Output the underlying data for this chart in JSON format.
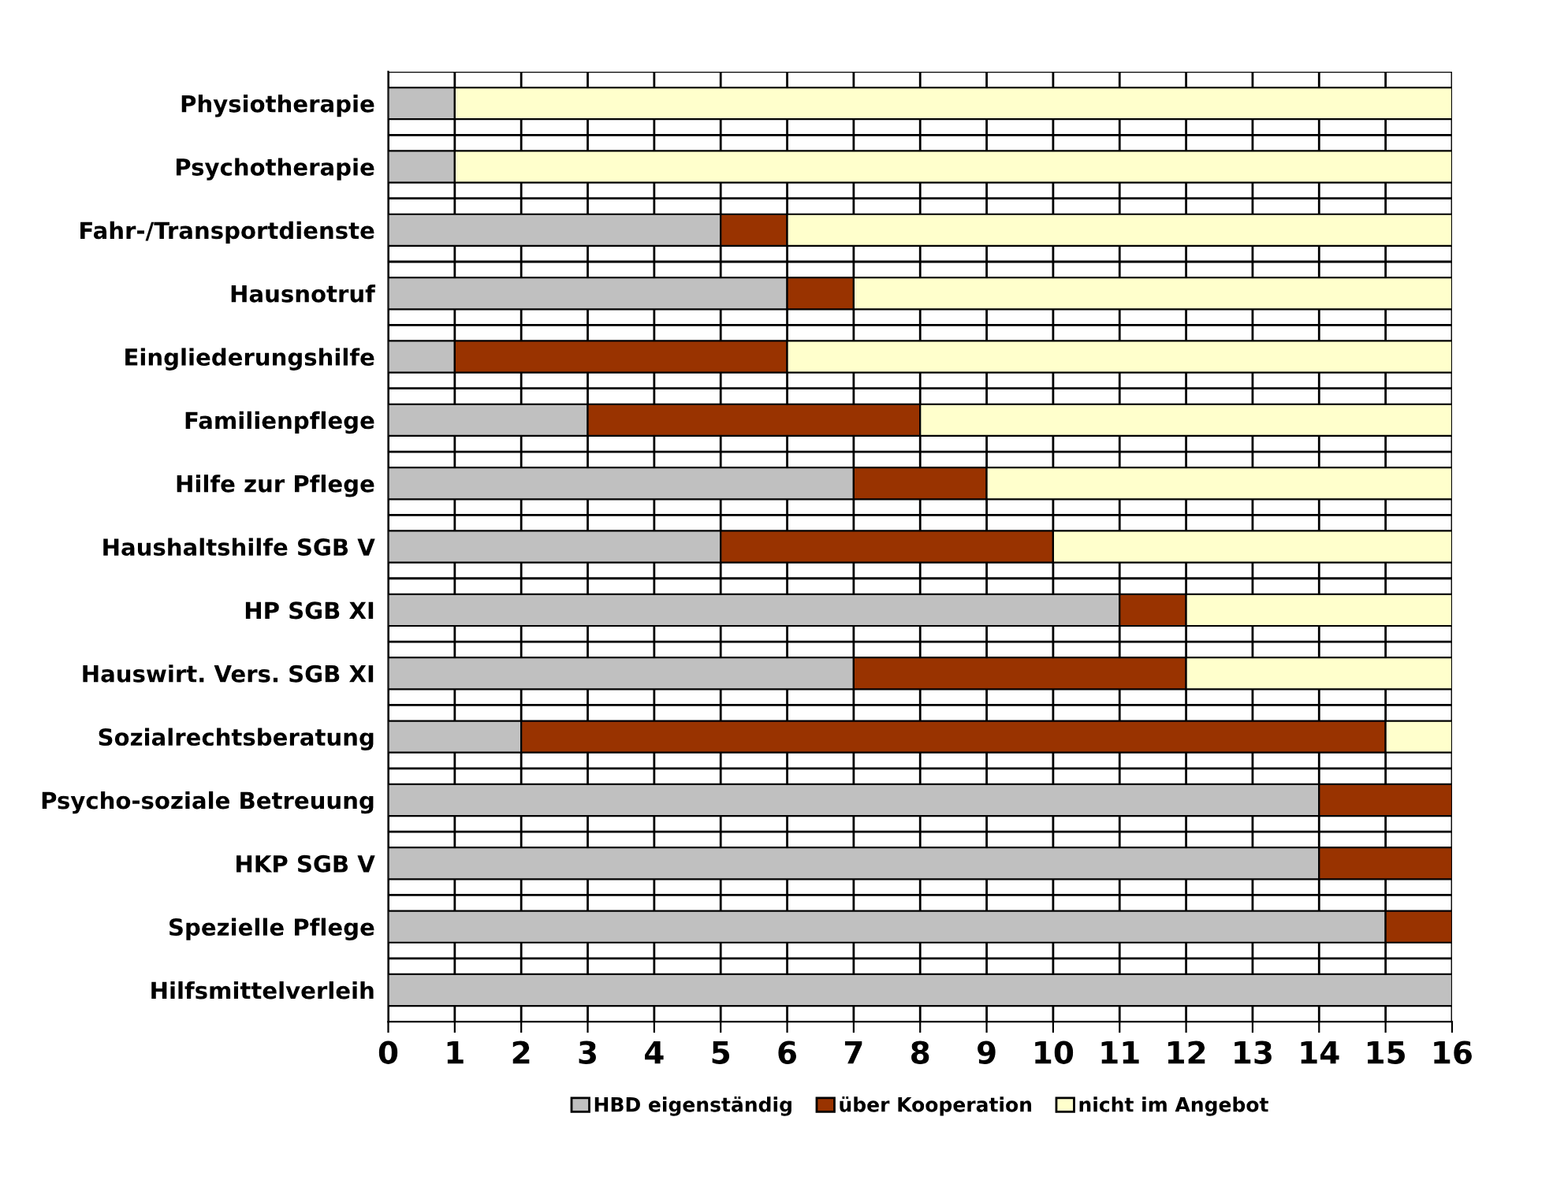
{
  "chart_data": {
    "type": "bar",
    "orientation": "horizontal",
    "stacked": true,
    "categories": [
      "Physiotherapie",
      "Psychotherapie",
      "Fahr-/Transportdienste",
      "Hausnotruf",
      "Eingliederungshilfe",
      "Familienpflege",
      "Hilfe zur Pflege",
      "Haushaltshilfe SGB V",
      "HP SGB XI",
      "Hauswirt. Vers. SGB XI",
      "Sozialrechtsberatung",
      "Psycho-soziale Betreuung",
      "HKP SGB V",
      "Spezielle Pflege",
      "Hilfsmittelverleih"
    ],
    "series": [
      {
        "name": "HBD eigenständig",
        "color": "#c0c0c0",
        "values": [
          1,
          1,
          5,
          6,
          1,
          3,
          7,
          5,
          11,
          7,
          2,
          14,
          14,
          15,
          16
        ]
      },
      {
        "name": "über Kooperation",
        "color": "#993300",
        "values": [
          0,
          0,
          1,
          1,
          5,
          5,
          2,
          5,
          1,
          5,
          13,
          2,
          2,
          1,
          0
        ]
      },
      {
        "name": "nicht im Angebot",
        "color": "#ffffcc",
        "values": [
          15,
          15,
          10,
          9,
          10,
          8,
          7,
          6,
          4,
          4,
          1,
          0,
          0,
          0,
          0
        ]
      }
    ],
    "xlim": [
      0,
      16
    ],
    "xticks": [
      0,
      1,
      2,
      3,
      4,
      5,
      6,
      7,
      8,
      9,
      10,
      11,
      12,
      13,
      14,
      15,
      16
    ],
    "grid": true,
    "legend": "bottom"
  }
}
